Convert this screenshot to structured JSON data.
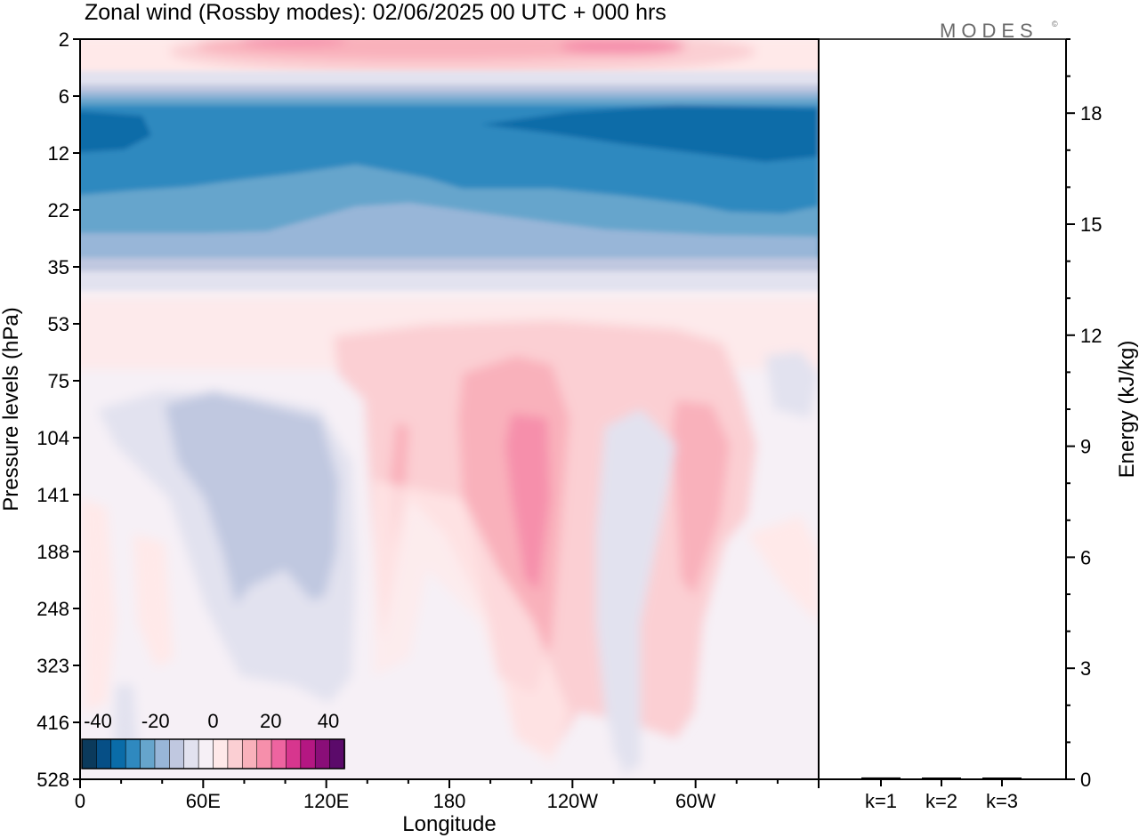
{
  "title": "Zonal wind (Rossby modes):  02/06/2025  00 UTC  + 000 hrs",
  "logo": "MODES",
  "logo_mark": "©",
  "chart_data": [
    {
      "type": "heatmap",
      "title": "Zonal wind (Rossby modes):  02/06/2025  00 UTC  + 000 hrs",
      "xlabel": "Longitude",
      "ylabel": "Pressure levels (hPa)",
      "x_ticks": [
        "0",
        "60E",
        "120E",
        "180",
        "120W",
        "60W"
      ],
      "y_ticks": [
        "2",
        "6",
        "12",
        "22",
        "35",
        "53",
        "75",
        "104",
        "141",
        "188",
        "248",
        "323",
        "416",
        "528"
      ],
      "colorbar": {
        "tick_labels": [
          "-40",
          "-20",
          "0",
          "20",
          "40"
        ],
        "colors": [
          "#0b3a5c",
          "#064f86",
          "#0a6ca8",
          "#2f89bf",
          "#66a5cc",
          "#98b6d8",
          "#c0c8e0",
          "#e2e2ef",
          "#f6f0f6",
          "#ffe9e9",
          "#fbcfd3",
          "#f9b1bb",
          "#f68fab",
          "#ee64a0",
          "#d7368e",
          "#b41782",
          "#8a0e78",
          "#5b0a6a"
        ]
      },
      "fields": [
        {
          "level": "6-10",
          "shade": "strong easterly",
          "color": "#0a6ca8"
        },
        {
          "level": "10-30",
          "shade": "easterly",
          "color": "#2f89bf"
        },
        {
          "level": "2-4",
          "shade": "weak westerly",
          "color": "#f9b1bb"
        },
        {
          "level": "75-248",
          "shade": "westerly maxima near 150W",
          "color": "#f68fab"
        },
        {
          "level": "104-323",
          "shade": "weak easterly near 60E-120E",
          "color": "#c0c8e0"
        }
      ]
    },
    {
      "type": "bar",
      "ylabel": "Energy (kJ/kg)",
      "categories": [
        "k=1",
        "k=2",
        "k=3"
      ],
      "values": [
        0.05,
        0.03,
        0.03
      ],
      "ylim": [
        0,
        20
      ],
      "y_ticks": [
        "0",
        "3",
        "6",
        "9",
        "12",
        "15",
        "18"
      ]
    }
  ]
}
